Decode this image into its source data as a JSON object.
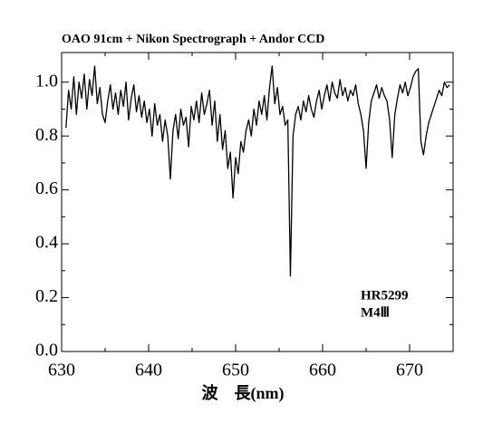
{
  "chart_data": {
    "type": "line",
    "title": "OAO 91cm + Nikon Spectrograph + Andor CCD",
    "x_label": "波　長(nm)",
    "annotations": [
      "HR5299",
      "M4Ⅲ"
    ],
    "xlim": [
      630,
      675
    ],
    "xticks": [
      630,
      640,
      650,
      660,
      670
    ],
    "xminorticks": [
      635,
      645,
      655,
      665
    ],
    "ylim": [
      0,
      1.11
    ],
    "yticks": [
      {
        "value": 0,
        "label": "0.0"
      },
      0.2,
      0.4,
      0.6,
      0.8,
      {
        "value": 1,
        "label": "1.0"
      }
    ],
    "yminorticks": [
      0.1,
      0.3,
      0.5,
      0.7,
      0.9
    ],
    "color": "#000000",
    "x": [
      630.5,
      630.8,
      631.1,
      631.4,
      631.7,
      632,
      632.3,
      632.6,
      632.9,
      633.2,
      633.5,
      633.8,
      634.1,
      634.4,
      634.7,
      635,
      635.3,
      635.6,
      635.9,
      636.2,
      636.5,
      636.8,
      637.1,
      637.4,
      637.7,
      638,
      638.3,
      638.6,
      638.9,
      639.2,
      639.5,
      639.8,
      640.1,
      640.4,
      640.7,
      641,
      641.3,
      641.6,
      641.9,
      642.2,
      642.5,
      642.8,
      643.1,
      643.4,
      643.7,
      644,
      644.3,
      644.6,
      644.9,
      645.2,
      645.5,
      645.8,
      646.1,
      646.4,
      646.7,
      647,
      647.3,
      647.6,
      647.9,
      648.2,
      648.5,
      648.8,
      649.1,
      649.4,
      649.7,
      650,
      650.3,
      650.6,
      650.9,
      651.2,
      651.5,
      651.8,
      652.1,
      652.4,
      652.7,
      653,
      653.3,
      653.6,
      653.9,
      654.2,
      654.5,
      654.8,
      655.1,
      655.4,
      655.7,
      656,
      656.3,
      656.6,
      656.9,
      657.2,
      657.5,
      657.8,
      658.1,
      658.4,
      658.7,
      659,
      659.3,
      659.6,
      659.9,
      660.2,
      660.5,
      660.8,
      661.1,
      661.4,
      661.7,
      662,
      662.3,
      662.6,
      662.9,
      663.2,
      663.5,
      663.8,
      664.1,
      664.4,
      664.7,
      665,
      665.3,
      665.6,
      665.9,
      666.2,
      666.5,
      666.8,
      667.1,
      667.4,
      667.7,
      668,
      668.3,
      668.6,
      668.9,
      669.2,
      669.5,
      669.8,
      670.1,
      670.4,
      670.7,
      671,
      671.3,
      671.6,
      671.9,
      672.2,
      672.5,
      672.8,
      673.1,
      673.4,
      673.7,
      674,
      674.3,
      674.6
    ],
    "values": [
      0.83,
      0.97,
      0.9,
      1.02,
      0.88,
      1.0,
      0.94,
      1.03,
      0.9,
      1.01,
      0.95,
      1.06,
      0.92,
      0.98,
      0.88,
      0.85,
      0.93,
      0.99,
      0.9,
      0.96,
      0.88,
      0.97,
      0.91,
      1.0,
      0.86,
      0.94,
      0.99,
      0.89,
      0.95,
      0.87,
      0.93,
      0.85,
      0.9,
      0.8,
      0.92,
      0.84,
      0.88,
      0.78,
      0.86,
      0.8,
      0.64,
      0.82,
      0.88,
      0.79,
      0.9,
      0.84,
      0.87,
      0.76,
      0.91,
      0.86,
      0.93,
      0.85,
      0.96,
      0.88,
      0.92,
      0.97,
      0.84,
      0.93,
      0.78,
      0.88,
      0.75,
      0.82,
      0.68,
      0.74,
      0.57,
      0.72,
      0.66,
      0.78,
      0.74,
      0.82,
      0.86,
      0.8,
      0.9,
      0.84,
      0.93,
      0.88,
      0.95,
      0.86,
      0.98,
      1.06,
      0.92,
      0.98,
      0.88,
      0.91,
      0.84,
      0.86,
      0.28,
      0.8,
      0.88,
      0.91,
      0.86,
      0.93,
      0.89,
      0.95,
      0.9,
      0.87,
      0.93,
      0.97,
      0.9,
      0.95,
      0.99,
      0.93,
      1.0,
      0.96,
      0.94,
      1.01,
      0.95,
      0.98,
      0.93,
      0.97,
      0.95,
      0.99,
      0.92,
      0.88,
      0.82,
      0.68,
      0.85,
      0.93,
      0.96,
      0.99,
      0.94,
      0.98,
      0.95,
      0.93,
      0.86,
      0.72,
      0.88,
      0.94,
      0.99,
      0.96,
      1.0,
      0.95,
      0.98,
      1.02,
      1.04,
      1.05,
      0.78,
      0.73,
      0.8,
      0.85,
      0.88,
      0.91,
      0.94,
      0.97,
      0.95,
      1.0,
      0.98,
      0.99
    ]
  }
}
